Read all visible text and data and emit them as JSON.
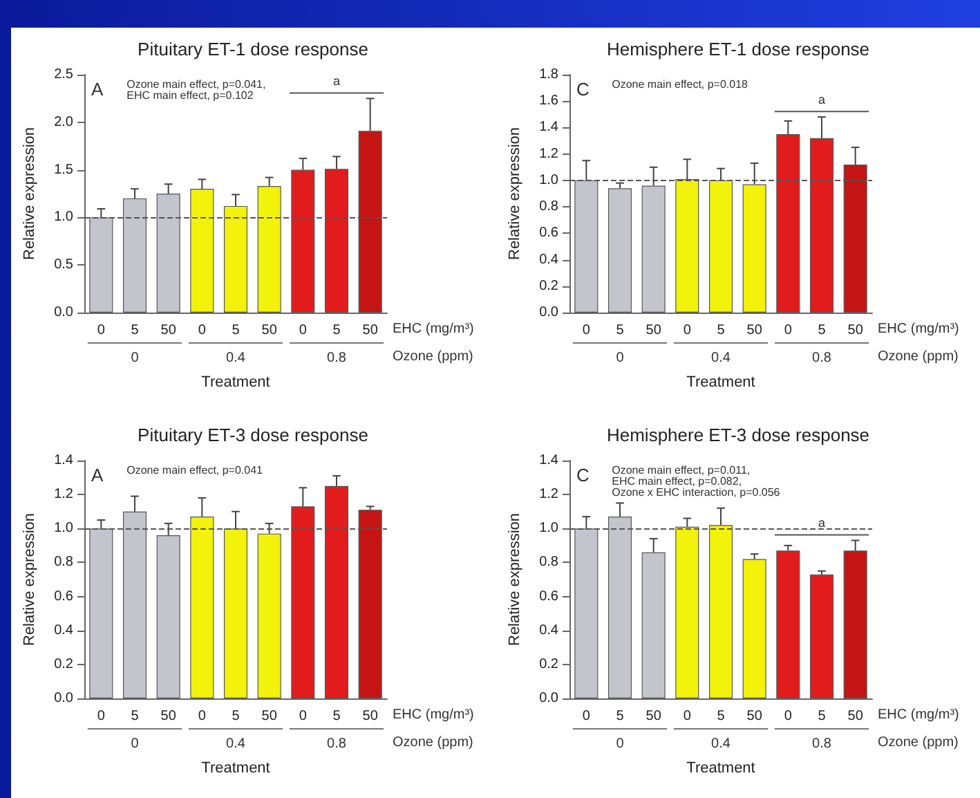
{
  "chart_data": [
    {
      "type": "bar",
      "title": "Pituitary ET-1 dose response",
      "xlabel": "Treatment",
      "ylabel": "Relative expression",
      "categories": [
        "0",
        "5",
        "50",
        "0",
        "5",
        "50",
        "0",
        "5",
        "50"
      ],
      "values": [
        1.0,
        1.2,
        1.25,
        1.3,
        1.12,
        1.33,
        1.5,
        1.51,
        1.91
      ],
      "colors": [
        "#c4c4cc",
        "#c4c4cc",
        "#c4c4cc",
        "#f2f20a",
        "#f2f20a",
        "#f2f20a",
        "#e21c1c",
        "#e21c1c",
        "#c41414"
      ],
      "errors": [
        [
          1.0,
          1.09
        ],
        [
          1.2,
          1.3
        ],
        [
          1.25,
          1.35
        ],
        [
          1.3,
          1.4
        ],
        [
          1.12,
          1.24
        ],
        [
          1.33,
          1.42
        ],
        [
          1.5,
          1.62
        ],
        [
          1.51,
          1.64
        ],
        [
          1.91,
          2.25
        ]
      ],
      "ylim": [
        0,
        2.5
      ],
      "yticks": [
        {
          "value": 0,
          "label": "0.0"
        },
        0.5,
        {
          "value": 1,
          "label": "1.0"
        },
        1.5,
        {
          "value": 2,
          "label": "2.0"
        },
        2.5
      ],
      "ref_lines": [
        {
          "axis": "y",
          "value": 1,
          "line_style": "dashed"
        }
      ],
      "annotations": [
        "A",
        "Ozone main effect, p=0.041,\nEHC main effect, p=0.102",
        "EHC (mg/m³)",
        "Ozone (ppm)",
        "0",
        "0.4",
        "0.8",
        "a"
      ],
      "grid": false
    },
    {
      "type": "bar",
      "title": "Hemisphere ET-1 dose response",
      "xlabel": "Treatment",
      "ylabel": "Relative expression",
      "categories": [
        "0",
        "5",
        "50",
        "0",
        "5",
        "50",
        "0",
        "5",
        "50"
      ],
      "values": [
        1.0,
        0.94,
        0.96,
        1.01,
        1.0,
        0.97,
        1.35,
        1.32,
        1.12
      ],
      "colors": [
        "#c4c4cc",
        "#c4c4cc",
        "#c4c4cc",
        "#f2f20a",
        "#f2f20a",
        "#f2f20a",
        "#e21c1c",
        "#e21c1c",
        "#c41414"
      ],
      "errors": [
        [
          1.0,
          1.15
        ],
        [
          0.94,
          0.98
        ],
        [
          0.96,
          1.1
        ],
        [
          1.01,
          1.16
        ],
        [
          1.0,
          1.09
        ],
        [
          0.97,
          1.13
        ],
        [
          1.35,
          1.45
        ],
        [
          1.32,
          1.48
        ],
        [
          1.12,
          1.25
        ]
      ],
      "ylim": [
        0,
        1.8
      ],
      "yticks": [
        {
          "value": 0,
          "label": "0.0"
        },
        0.2,
        0.4,
        0.6,
        0.8,
        {
          "value": 1,
          "label": "1.0"
        },
        1.2,
        1.4,
        1.6,
        1.8
      ],
      "ref_lines": [
        {
          "axis": "y",
          "value": 1,
          "line_style": "dashed"
        }
      ],
      "annotations": [
        "C",
        "Ozone main effect, p=0.018",
        "EHC (mg/m³)",
        "Ozone (ppm)",
        "0",
        "0.4",
        "0.8",
        "a"
      ],
      "grid": false
    },
    {
      "type": "bar",
      "title": "Pituitary ET-3 dose response",
      "xlabel": "Treatment",
      "ylabel": "Relative expression",
      "categories": [
        "0",
        "5",
        "50",
        "0",
        "5",
        "50",
        "0",
        "5",
        "50"
      ],
      "values": [
        1.0,
        1.1,
        0.96,
        1.07,
        1.0,
        0.97,
        1.13,
        1.25,
        1.11
      ],
      "colors": [
        "#c4c4cc",
        "#c4c4cc",
        "#c4c4cc",
        "#f2f20a",
        "#f2f20a",
        "#f2f20a",
        "#e21c1c",
        "#e21c1c",
        "#c41414"
      ],
      "errors": [
        [
          1.0,
          1.05
        ],
        [
          1.1,
          1.19
        ],
        [
          0.96,
          1.03
        ],
        [
          1.07,
          1.18
        ],
        [
          1.0,
          1.1
        ],
        [
          0.97,
          1.03
        ],
        [
          1.13,
          1.24
        ],
        [
          1.25,
          1.31
        ],
        [
          1.11,
          1.13
        ]
      ],
      "ylim": [
        0,
        1.4
      ],
      "yticks": [
        {
          "value": 0,
          "label": "0.0"
        },
        0.2,
        0.4,
        0.6,
        0.8,
        {
          "value": 1,
          "label": "1.0"
        },
        1.2,
        1.4
      ],
      "ref_lines": [
        {
          "axis": "y",
          "value": 1,
          "line_style": "dashed"
        }
      ],
      "annotations": [
        "A",
        "Ozone main effect, p=0.041",
        "EHC (mg/m³)",
        "Ozone (ppm)",
        "0",
        "0.4",
        "0.8"
      ],
      "grid": false
    },
    {
      "type": "bar",
      "title": "Hemisphere ET-3 dose response",
      "xlabel": "Treatment",
      "ylabel": "Relative expression",
      "categories": [
        "0",
        "5",
        "50",
        "0",
        "5",
        "50",
        "0",
        "5",
        "50"
      ],
      "values": [
        1.0,
        1.07,
        0.86,
        1.01,
        1.02,
        0.82,
        0.87,
        0.73,
        0.87
      ],
      "colors": [
        "#c4c4cc",
        "#c4c4cc",
        "#c4c4cc",
        "#f2f20a",
        "#f2f20a",
        "#f2f20a",
        "#e21c1c",
        "#e21c1c",
        "#c41414"
      ],
      "errors": [
        [
          1.0,
          1.07
        ],
        [
          1.07,
          1.15
        ],
        [
          0.86,
          0.94
        ],
        [
          1.01,
          1.06
        ],
        [
          1.02,
          1.12
        ],
        [
          0.82,
          0.85
        ],
        [
          0.87,
          0.9
        ],
        [
          0.73,
          0.75
        ],
        [
          0.87,
          0.93
        ]
      ],
      "ylim": [
        0,
        1.4
      ],
      "yticks": [
        {
          "value": 0,
          "label": "0.0"
        },
        0.2,
        0.4,
        0.6,
        0.8,
        {
          "value": 1,
          "label": "1.0"
        },
        1.2,
        1.4
      ],
      "ref_lines": [
        {
          "axis": "y",
          "value": 1,
          "line_style": "dashed"
        }
      ],
      "annotations": [
        "C",
        "Ozone main effect, p=0.011,\nEHC main effect, p=0.082,\nOzone x EHC interaction, p=0.056",
        "EHC (mg/m³)",
        "Ozone (ppm)",
        "0",
        "0.4",
        "0.8",
        "a"
      ],
      "grid": false
    }
  ]
}
